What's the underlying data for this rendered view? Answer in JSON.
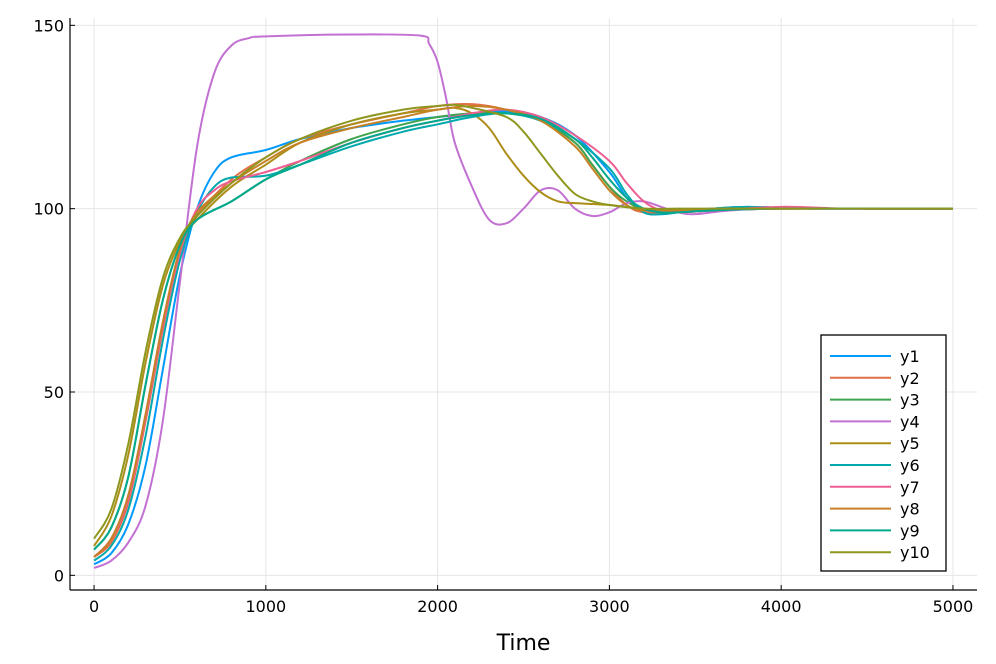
{
  "chart_data": {
    "type": "line",
    "title": "",
    "xlabel": "Time",
    "ylabel": "",
    "xlim": [
      -140,
      5140
    ],
    "ylim": [
      -4,
      152
    ],
    "xticks": [
      0,
      1000,
      2000,
      3000,
      4000,
      5000
    ],
    "yticks": [
      0,
      50,
      100,
      150
    ],
    "grid": true,
    "legend_position": "bottom-right",
    "series": [
      {
        "name": "y1",
        "color": "#009AFA",
        "points": [
          [
            0,
            3
          ],
          [
            100,
            6
          ],
          [
            200,
            14
          ],
          [
            300,
            30
          ],
          [
            400,
            56
          ],
          [
            500,
            82
          ],
          [
            600,
            100
          ],
          [
            700,
            110
          ],
          [
            800,
            114
          ],
          [
            1000,
            116
          ],
          [
            1200,
            119
          ],
          [
            1500,
            122
          ],
          [
            1800,
            124
          ],
          [
            2000,
            125
          ],
          [
            2200,
            126
          ],
          [
            2400,
            126.5
          ],
          [
            2600,
            125
          ],
          [
            2800,
            120
          ],
          [
            3000,
            110
          ],
          [
            3100,
            103
          ],
          [
            3200,
            99
          ],
          [
            3300,
            98.5
          ],
          [
            3400,
            99
          ],
          [
            3600,
            100
          ],
          [
            3800,
            100.5
          ],
          [
            4200,
            100
          ],
          [
            5000,
            100
          ]
        ]
      },
      {
        "name": "y2",
        "color": "#E36F47",
        "points": [
          [
            0,
            5
          ],
          [
            100,
            9
          ],
          [
            200,
            20
          ],
          [
            300,
            42
          ],
          [
            400,
            67
          ],
          [
            500,
            88
          ],
          [
            600,
            98
          ],
          [
            800,
            108
          ],
          [
            1000,
            114
          ],
          [
            1200,
            119
          ],
          [
            1500,
            123
          ],
          [
            1800,
            126
          ],
          [
            2000,
            128
          ],
          [
            2200,
            128.5
          ],
          [
            2400,
            127
          ],
          [
            2600,
            124
          ],
          [
            2800,
            118
          ],
          [
            2900,
            112
          ],
          [
            3000,
            106
          ],
          [
            3100,
            101
          ],
          [
            3200,
            99
          ],
          [
            3400,
            99
          ],
          [
            3600,
            99.5
          ],
          [
            4000,
            100
          ],
          [
            5000,
            100
          ]
        ]
      },
      {
        "name": "y3",
        "color": "#3EA44E",
        "points": [
          [
            0,
            7
          ],
          [
            100,
            13
          ],
          [
            200,
            27
          ],
          [
            300,
            52
          ],
          [
            400,
            75
          ],
          [
            500,
            90
          ],
          [
            600,
            97
          ],
          [
            800,
            102
          ],
          [
            1000,
            108
          ],
          [
            1200,
            113
          ],
          [
            1500,
            119
          ],
          [
            1800,
            123
          ],
          [
            2000,
            125
          ],
          [
            2200,
            126
          ],
          [
            2400,
            126
          ],
          [
            2600,
            124
          ],
          [
            2800,
            118
          ],
          [
            2900,
            112
          ],
          [
            3000,
            106
          ],
          [
            3100,
            102
          ],
          [
            3200,
            100
          ],
          [
            3400,
            99
          ],
          [
            3600,
            99.5
          ],
          [
            4000,
            100
          ],
          [
            5000,
            100
          ]
        ]
      },
      {
        "name": "y4",
        "color": "#C271D2",
        "points": [
          [
            0,
            2
          ],
          [
            100,
            4
          ],
          [
            200,
            9
          ],
          [
            300,
            19
          ],
          [
            400,
            42
          ],
          [
            500,
            80
          ],
          [
            600,
            117
          ],
          [
            700,
            137
          ],
          [
            800,
            144.5
          ],
          [
            900,
            146.5
          ],
          [
            1000,
            147
          ],
          [
            1500,
            147.5
          ],
          [
            1900,
            147.2
          ],
          [
            1950,
            145
          ],
          [
            2000,
            140
          ],
          [
            2050,
            130
          ],
          [
            2100,
            118
          ],
          [
            2200,
            106
          ],
          [
            2300,
            97
          ],
          [
            2400,
            96
          ],
          [
            2500,
            100
          ],
          [
            2600,
            105
          ],
          [
            2700,
            105
          ],
          [
            2800,
            100
          ],
          [
            2900,
            98
          ],
          [
            3000,
            99
          ],
          [
            3100,
            101.5
          ],
          [
            3200,
            102
          ],
          [
            3300,
            100.5
          ],
          [
            3400,
            99
          ],
          [
            3500,
            98.5
          ],
          [
            3700,
            99.5
          ],
          [
            4000,
            100
          ],
          [
            5000,
            100
          ]
        ]
      },
      {
        "name": "y5",
        "color": "#AC8D18",
        "points": [
          [
            0,
            8
          ],
          [
            100,
            16
          ],
          [
            200,
            33
          ],
          [
            300,
            58
          ],
          [
            400,
            79
          ],
          [
            500,
            91
          ],
          [
            600,
            97
          ],
          [
            800,
            106
          ],
          [
            1000,
            112
          ],
          [
            1200,
            118
          ],
          [
            1500,
            123
          ],
          [
            1800,
            126
          ],
          [
            2000,
            127
          ],
          [
            2100,
            127.5
          ],
          [
            2200,
            126
          ],
          [
            2300,
            122
          ],
          [
            2400,
            115
          ],
          [
            2500,
            109
          ],
          [
            2600,
            104.5
          ],
          [
            2700,
            102
          ],
          [
            2800,
            101.5
          ],
          [
            3000,
            101
          ],
          [
            3200,
            100
          ],
          [
            3400,
            99.5
          ],
          [
            3800,
            100
          ],
          [
            5000,
            100
          ]
        ]
      },
      {
        "name": "y6",
        "color": "#00A9AD",
        "points": [
          [
            0,
            4
          ],
          [
            100,
            8
          ],
          [
            200,
            18
          ],
          [
            300,
            38
          ],
          [
            400,
            64
          ],
          [
            500,
            86
          ],
          [
            600,
            99
          ],
          [
            700,
            106
          ],
          [
            800,
            108.5
          ],
          [
            1000,
            109
          ],
          [
            1200,
            112
          ],
          [
            1500,
            117
          ],
          [
            1800,
            121
          ],
          [
            2000,
            123
          ],
          [
            2200,
            125
          ],
          [
            2400,
            126
          ],
          [
            2600,
            124
          ],
          [
            2800,
            119
          ],
          [
            3000,
            111
          ],
          [
            3100,
            104
          ],
          [
            3200,
            99
          ],
          [
            3300,
            98.5
          ],
          [
            3400,
            99
          ],
          [
            3600,
            100
          ],
          [
            3800,
            100.5
          ],
          [
            4200,
            100
          ],
          [
            5000,
            100
          ]
        ]
      },
      {
        "name": "y7",
        "color": "#ED5E93",
        "points": [
          [
            0,
            5
          ],
          [
            100,
            10
          ],
          [
            200,
            21
          ],
          [
            300,
            43
          ],
          [
            400,
            68
          ],
          [
            500,
            88
          ],
          [
            600,
            100
          ],
          [
            700,
            105
          ],
          [
            800,
            107.5
          ],
          [
            1000,
            110
          ],
          [
            1200,
            113
          ],
          [
            1500,
            118
          ],
          [
            1800,
            122
          ],
          [
            2000,
            124
          ],
          [
            2200,
            126
          ],
          [
            2400,
            127
          ],
          [
            2600,
            125
          ],
          [
            2800,
            120
          ],
          [
            3000,
            113
          ],
          [
            3100,
            107
          ],
          [
            3200,
            102
          ],
          [
            3300,
            99.5
          ],
          [
            3400,
            99
          ],
          [
            3600,
            99.5
          ],
          [
            4000,
            100.5
          ],
          [
            4400,
            100
          ],
          [
            5000,
            100
          ]
        ]
      },
      {
        "name": "y8",
        "color": "#C68125",
        "points": [
          [
            0,
            5
          ],
          [
            100,
            10
          ],
          [
            200,
            22
          ],
          [
            300,
            44
          ],
          [
            400,
            69
          ],
          [
            500,
            89
          ],
          [
            600,
            99
          ],
          [
            800,
            107
          ],
          [
            1000,
            113
          ],
          [
            1200,
            118
          ],
          [
            1500,
            122
          ],
          [
            1800,
            125
          ],
          [
            2000,
            127
          ],
          [
            2200,
            128
          ],
          [
            2400,
            127
          ],
          [
            2600,
            124
          ],
          [
            2800,
            117
          ],
          [
            2900,
            111
          ],
          [
            3000,
            105
          ],
          [
            3100,
            101
          ],
          [
            3200,
            99.5
          ],
          [
            3400,
            99.5
          ],
          [
            3700,
            100
          ],
          [
            5000,
            100
          ]
        ]
      },
      {
        "name": "y9",
        "color": "#00A98D",
        "points": [
          [
            0,
            7
          ],
          [
            100,
            13
          ],
          [
            200,
            27
          ],
          [
            300,
            52
          ],
          [
            400,
            75
          ],
          [
            500,
            90
          ],
          [
            600,
            97
          ],
          [
            800,
            102
          ],
          [
            1000,
            108
          ],
          [
            1200,
            112
          ],
          [
            1500,
            118
          ],
          [
            1800,
            122
          ],
          [
            2000,
            124
          ],
          [
            2200,
            125.5
          ],
          [
            2400,
            126
          ],
          [
            2600,
            124.5
          ],
          [
            2800,
            119
          ],
          [
            2900,
            114
          ],
          [
            3000,
            108
          ],
          [
            3100,
            103
          ],
          [
            3200,
            100
          ],
          [
            3300,
            99
          ],
          [
            3400,
            99
          ],
          [
            3600,
            99.5
          ],
          [
            4000,
            100
          ],
          [
            5000,
            100
          ]
        ]
      },
      {
        "name": "y10",
        "color": "#8E971D",
        "points": [
          [
            0,
            10
          ],
          [
            100,
            18
          ],
          [
            200,
            36
          ],
          [
            300,
            61
          ],
          [
            400,
            81
          ],
          [
            500,
            92
          ],
          [
            600,
            98
          ],
          [
            800,
            107
          ],
          [
            1000,
            114
          ],
          [
            1200,
            119
          ],
          [
            1500,
            124
          ],
          [
            1800,
            127
          ],
          [
            2000,
            128
          ],
          [
            2100,
            128.3
          ],
          [
            2200,
            127.5
          ],
          [
            2400,
            125
          ],
          [
            2500,
            121
          ],
          [
            2600,
            115
          ],
          [
            2700,
            109
          ],
          [
            2800,
            104
          ],
          [
            2900,
            102
          ],
          [
            3000,
            101
          ],
          [
            3200,
            100
          ],
          [
            3400,
            100
          ],
          [
            4000,
            100
          ],
          [
            5000,
            100
          ]
        ]
      }
    ]
  }
}
